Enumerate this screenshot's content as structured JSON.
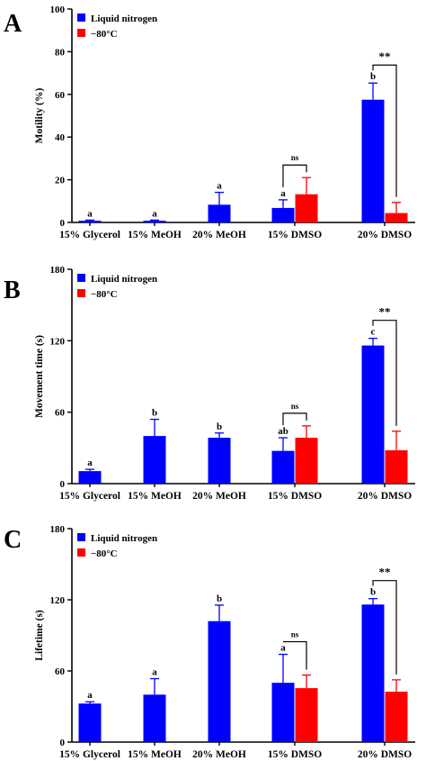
{
  "colors": {
    "liquid_nitrogen": "#0000ff",
    "minus80": "#ff0000",
    "axis": "#000000"
  },
  "chart_data": [
    {
      "panel": "A",
      "type": "bar",
      "ylabel": "Motility (%)",
      "ylim": [
        0,
        100
      ],
      "yticks": [
        "0",
        "20",
        "40",
        "60",
        "80",
        "100"
      ],
      "categories": [
        "15% Glycerol",
        "15% MeOH",
        "20% MeOH",
        "15% DMSO",
        "20% DMSO"
      ],
      "series": [
        {
          "name": "Liquid nitrogen",
          "values": [
            0.8,
            0.8,
            8.3,
            6.8,
            57.5
          ],
          "errors": [
            0.3,
            0.3,
            5.8,
            3.8,
            7.8
          ],
          "labels": [
            "a",
            "a",
            "a",
            "a",
            "b"
          ]
        },
        {
          "name": "−80°C",
          "values": [
            null,
            null,
            null,
            13.2,
            4.4
          ],
          "errors": [
            null,
            null,
            null,
            7.8,
            5.0
          ]
        }
      ],
      "comparisons": [
        {
          "category": 3,
          "label": "ns"
        },
        {
          "category": 4,
          "label": "**"
        }
      ],
      "legend": "top-left"
    },
    {
      "panel": "B",
      "type": "bar",
      "ylabel": "Movement time (s)",
      "ylim": [
        0,
        180
      ],
      "yticks": [
        "0",
        "60",
        "120",
        "180"
      ],
      "categories": [
        "15% Glycerol",
        "15% MeOH",
        "20% MeOH",
        "15% DMSO",
        "20% DMSO"
      ],
      "series": [
        {
          "name": "Liquid nitrogen",
          "values": [
            10.5,
            40,
            38.5,
            27.5,
            116
          ],
          "errors": [
            1.5,
            14,
            4,
            11,
            6
          ],
          "labels": [
            "a",
            "b",
            "b",
            "ab",
            "c"
          ]
        },
        {
          "name": "−80°C",
          "values": [
            null,
            null,
            null,
            38.5,
            28
          ],
          "errors": [
            null,
            null,
            null,
            10,
            16
          ]
        }
      ],
      "comparisons": [
        {
          "category": 3,
          "label": "ns"
        },
        {
          "category": 4,
          "label": "**"
        }
      ],
      "legend": "top-left"
    },
    {
      "panel": "C",
      "type": "bar",
      "ylabel": "Lifetime (s)",
      "ylim": [
        0,
        180
      ],
      "yticks": [
        "0",
        "60",
        "120",
        "180"
      ],
      "categories": [
        "15% Glycerol",
        "15% MeOH",
        "20% MeOH",
        "15% DMSO",
        "20% DMSO"
      ],
      "series": [
        {
          "name": "Liquid nitrogen",
          "values": [
            32.5,
            40,
            102,
            50,
            116
          ],
          "errors": [
            1.5,
            13.5,
            13.5,
            24,
            5
          ],
          "labels": [
            "a",
            "a",
            "b",
            "a",
            "b"
          ]
        },
        {
          "name": "−80°C",
          "values": [
            null,
            null,
            null,
            45.5,
            42.5
          ],
          "errors": [
            null,
            null,
            null,
            11,
            10
          ]
        }
      ],
      "comparisons": [
        {
          "category": 3,
          "label": "ns"
        },
        {
          "category": 4,
          "label": "**"
        }
      ],
      "legend": "top-left"
    }
  ]
}
